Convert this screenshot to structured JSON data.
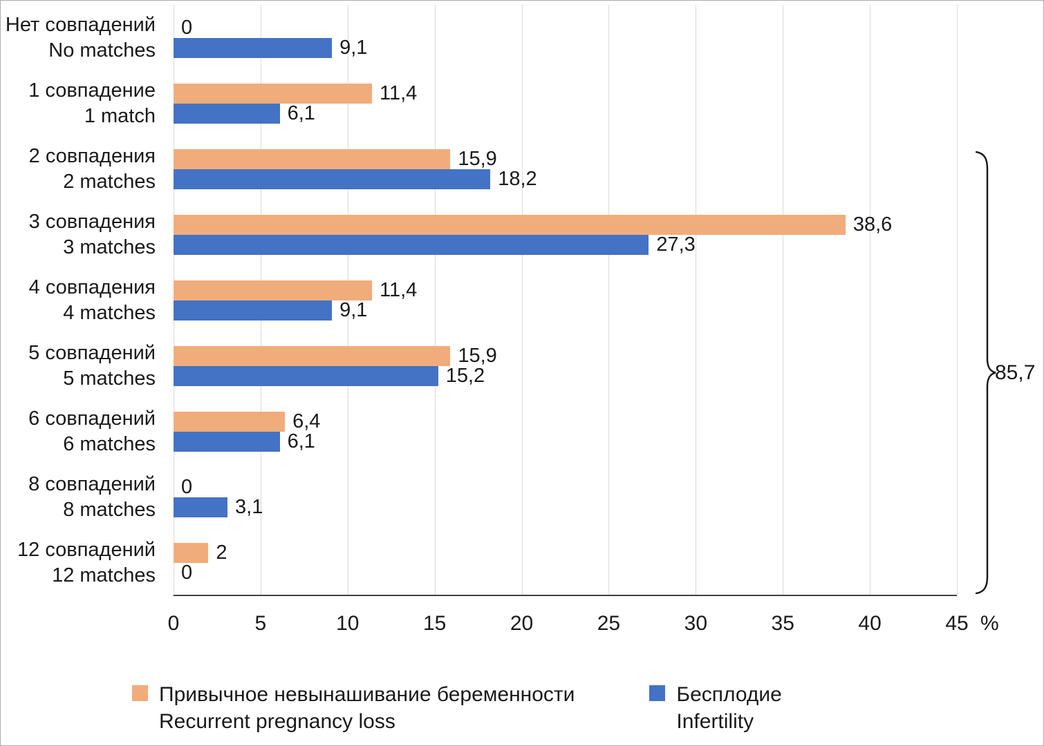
{
  "chart_data": {
    "type": "bar",
    "orientation": "horizontal",
    "title": "",
    "x_unit": "%",
    "xlim": [
      0,
      45
    ],
    "xticks": [
      0,
      5,
      10,
      15,
      20,
      25,
      30,
      35,
      40,
      45
    ],
    "xtick_labels": [
      "0",
      "5",
      "10",
      "15",
      "20",
      "25",
      "30",
      "35",
      "40",
      "45"
    ],
    "grid": "vertical",
    "legend_position": "bottom",
    "categories": [
      {
        "ru": "Нет совпадений",
        "en": "No matches"
      },
      {
        "ru": "1 совпадение",
        "en": "1 match"
      },
      {
        "ru": "2 совпадения",
        "en": "2 matches"
      },
      {
        "ru": "3 совпадения",
        "en": "3 matches"
      },
      {
        "ru": "4 совпадения",
        "en": "4 matches"
      },
      {
        "ru": "5 совпадений",
        "en": "5 matches"
      },
      {
        "ru": "6 совпадений",
        "en": "6 matches"
      },
      {
        "ru": "8 совпадений",
        "en": "8 matches"
      },
      {
        "ru": "12 совпадений",
        "en": "12 matches"
      }
    ],
    "series": [
      {
        "name_ru": "Привычное невынашивание беременности",
        "name_en": "Recurrent pregnancy loss",
        "color": "#F1AC7B",
        "values": [
          0,
          11.4,
          15.9,
          38.6,
          11.4,
          15.9,
          6.4,
          0,
          2
        ],
        "value_labels": [
          "0",
          "11,4",
          "15,9",
          "38,6",
          "11,4",
          "15,9",
          "6,4",
          "0",
          "2"
        ]
      },
      {
        "name_ru": "Бесплодие",
        "name_en": "Infertility",
        "color": "#4472C4",
        "values": [
          9.1,
          6.1,
          18.2,
          27.3,
          9.1,
          15.2,
          6.1,
          3.1,
          0
        ],
        "value_labels": [
          "9,1",
          "6,1",
          "18,2",
          "27,3",
          "9,1",
          "15,2",
          "6,1",
          "3,1",
          "0"
        ]
      }
    ],
    "annotation": {
      "label": "85,7",
      "from_category_index": 2,
      "to_category_index": 8
    }
  }
}
